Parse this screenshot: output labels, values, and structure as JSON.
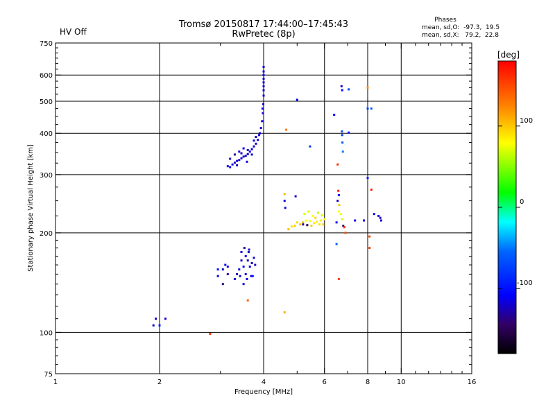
{
  "chart_data": {
    "type": "scatter",
    "title": "Tromsø 20150817 17:44:00–17:45:43",
    "subtitle": "RwPretec (8p)",
    "status_label": "HV Off",
    "status_color": "#cc0000",
    "phases": {
      "title": "Phases",
      "line1": "mean, sd,O:  -97.3,  19.5",
      "line2": "mean, sd,X:   79.2,  22.8"
    },
    "xlabel": "Frequency [MHz]",
    "ylabel": "Stationary phase Virtual Height [km]",
    "xscale": "log2",
    "yscale": "log",
    "xlim": [
      1,
      16
    ],
    "ylim": [
      75,
      750
    ],
    "x_ticks": [
      1,
      2,
      4,
      6,
      8,
      10,
      16
    ],
    "y_ticks": [
      75,
      100,
      200,
      300,
      400,
      500,
      600,
      750
    ],
    "x_grid": [
      2,
      4,
      6,
      8,
      10
    ],
    "y_grid": [
      100,
      200,
      300,
      400,
      500,
      600
    ],
    "colorbar": {
      "label": "[deg]",
      "min": -180,
      "max": 180,
      "ticks": [
        100,
        0,
        -100
      ]
    },
    "points": [
      [
        1.92,
        105,
        -120
      ],
      [
        1.95,
        110,
        -125
      ],
      [
        2.0,
        105,
        -95
      ],
      [
        2.08,
        110,
        -120
      ],
      [
        2.8,
        99,
        155
      ],
      [
        2.95,
        148,
        -110
      ],
      [
        2.95,
        155,
        -100
      ],
      [
        3.05,
        140,
        -140
      ],
      [
        3.05,
        155,
        -120
      ],
      [
        3.1,
        160,
        -110
      ],
      [
        3.15,
        158,
        -115
      ],
      [
        3.15,
        150,
        -125
      ],
      [
        3.3,
        145,
        -120
      ],
      [
        3.35,
        150,
        -125
      ],
      [
        3.4,
        155,
        -115
      ],
      [
        3.42,
        148,
        -120
      ],
      [
        3.45,
        165,
        -125
      ],
      [
        3.45,
        175,
        -120
      ],
      [
        3.5,
        158,
        -110
      ],
      [
        3.55,
        170,
        -115
      ],
      [
        3.55,
        150,
        -120
      ],
      [
        3.6,
        165,
        -118
      ],
      [
        3.62,
        175,
        -122
      ],
      [
        3.65,
        158,
        -115
      ],
      [
        3.68,
        148,
        -120
      ],
      [
        3.7,
        162,
        -125
      ],
      [
        3.75,
        168,
        -115
      ],
      [
        3.78,
        160,
        -120
      ],
      [
        3.5,
        140,
        -115
      ],
      [
        3.58,
        145,
        -118
      ],
      [
        3.63,
        178,
        -120
      ],
      [
        3.72,
        148,
        -100
      ],
      [
        3.52,
        180,
        -130
      ],
      [
        3.6,
        125,
        140
      ],
      [
        3.15,
        318,
        -115
      ],
      [
        3.2,
        316,
        -120
      ],
      [
        3.25,
        322,
        -118
      ],
      [
        3.3,
        326,
        -120
      ],
      [
        3.35,
        330,
        -122
      ],
      [
        3.4,
        332,
        -118
      ],
      [
        3.45,
        336,
        -120
      ],
      [
        3.5,
        340,
        -118
      ],
      [
        3.55,
        342,
        -120
      ],
      [
        3.6,
        346,
        -119
      ],
      [
        3.65,
        352,
        -120
      ],
      [
        3.7,
        358,
        -118
      ],
      [
        3.75,
        365,
        -120
      ],
      [
        3.8,
        372,
        -119
      ],
      [
        3.85,
        382,
        -120
      ],
      [
        3.9,
        400,
        -118
      ],
      [
        3.93,
        415,
        -120
      ],
      [
        3.96,
        435,
        -118
      ],
      [
        3.98,
        460,
        -120
      ],
      [
        3.99,
        490,
        -118
      ],
      [
        4.0,
        520,
        -120
      ],
      [
        4.0,
        555,
        -118
      ],
      [
        4.0,
        585,
        -119
      ],
      [
        4.0,
        615,
        -120
      ],
      [
        3.3,
        345,
        -130
      ],
      [
        3.4,
        352,
        -112
      ],
      [
        3.5,
        360,
        -115
      ],
      [
        3.6,
        356,
        -120
      ],
      [
        3.2,
        335,
        -118
      ],
      [
        3.45,
        348,
        -125
      ],
      [
        3.75,
        380,
        -115
      ],
      [
        3.88,
        395,
        -120
      ],
      [
        3.97,
        475,
        -112
      ],
      [
        4.0,
        540,
        -115
      ],
      [
        4.0,
        570,
        -120
      ],
      [
        4.0,
        600,
        -118
      ],
      [
        4.0,
        635,
        -115
      ],
      [
        3.35,
        320,
        -122
      ],
      [
        3.58,
        328,
        -118
      ],
      [
        3.8,
        390,
        -125
      ],
      [
        3.7,
        345,
        -115
      ],
      [
        4.65,
        410,
        130
      ],
      [
        5.0,
        505,
        -110
      ],
      [
        5.45,
        365,
        -80
      ],
      [
        4.6,
        115,
        110
      ],
      [
        4.6,
        250,
        -120
      ],
      [
        4.62,
        238,
        -110
      ],
      [
        4.6,
        262,
        105
      ],
      [
        4.72,
        205,
        105
      ],
      [
        4.82,
        209,
        90
      ],
      [
        4.92,
        210,
        100
      ],
      [
        5.0,
        215,
        95
      ],
      [
        5.1,
        212,
        100
      ],
      [
        5.2,
        215,
        105
      ],
      [
        5.25,
        228,
        70
      ],
      [
        5.3,
        218,
        80
      ],
      [
        5.35,
        211,
        -150
      ],
      [
        5.4,
        232,
        70
      ],
      [
        5.45,
        217,
        75
      ],
      [
        5.5,
        210,
        100
      ],
      [
        5.55,
        225,
        80
      ],
      [
        5.6,
        214,
        90
      ],
      [
        5.65,
        222,
        95
      ],
      [
        5.7,
        216,
        85
      ],
      [
        5.75,
        230,
        65
      ],
      [
        5.8,
        212,
        90
      ],
      [
        5.85,
        218,
        85
      ],
      [
        5.9,
        226,
        70
      ],
      [
        5.95,
        212,
        100
      ],
      [
        6.0,
        220,
        80
      ],
      [
        4.95,
        258,
        -125
      ],
      [
        5.2,
        212,
        -130
      ],
      [
        6.4,
        455,
        -110
      ],
      [
        6.55,
        322,
        160
      ],
      [
        6.58,
        268,
        170
      ],
      [
        6.6,
        260,
        -110
      ],
      [
        6.55,
        250,
        -125
      ],
      [
        6.62,
        243,
        100
      ],
      [
        6.6,
        232,
        80
      ],
      [
        6.7,
        228,
        75
      ],
      [
        6.75,
        220,
        70
      ],
      [
        6.8,
        210,
        -150
      ],
      [
        6.85,
        208,
        160
      ],
      [
        6.9,
        200,
        150
      ],
      [
        6.5,
        215,
        -110
      ],
      [
        6.5,
        185,
        -60
      ],
      [
        6.6,
        145,
        155
      ],
      [
        6.72,
        555,
        -120
      ],
      [
        6.75,
        540,
        -110
      ],
      [
        6.74,
        405,
        -70
      ],
      [
        6.75,
        395,
        -75
      ],
      [
        6.76,
        375,
        -65
      ],
      [
        6.78,
        352,
        -50
      ],
      [
        7.05,
        543,
        -75
      ],
      [
        7.05,
        402,
        -100
      ],
      [
        7.35,
        218,
        -110
      ],
      [
        7.8,
        218,
        -120
      ],
      [
        8.0,
        293,
        -95
      ],
      [
        8.1,
        195,
        150
      ],
      [
        8.1,
        180,
        155
      ],
      [
        8.0,
        550,
        120
      ],
      [
        8.0,
        475,
        -80
      ],
      [
        8.2,
        475,
        -60
      ],
      [
        8.2,
        270,
        170
      ],
      [
        8.35,
        228,
        -115
      ],
      [
        8.6,
        225,
        -120
      ],
      [
        8.7,
        222,
        -125
      ],
      [
        8.75,
        218,
        -115
      ]
    ]
  }
}
